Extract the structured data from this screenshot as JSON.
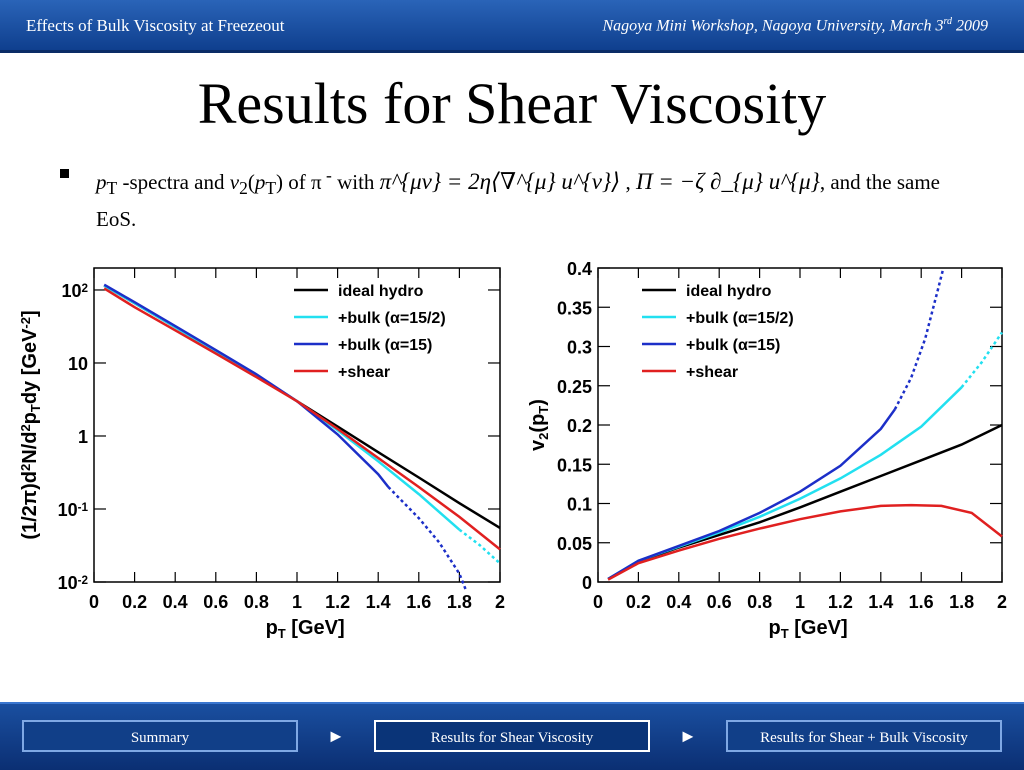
{
  "header": {
    "left_title": "Effects of Bulk Viscosity at Freezeout",
    "right_prefix": "Nagoya Mini Workshop, Nagoya University, March 3",
    "right_sup": "rd",
    "right_suffix": " 2009"
  },
  "slide": {
    "title": "Results for Shear Viscosity",
    "bullet": {
      "pt_letter": "p",
      "pt_sub": "T",
      "part1": " -spectra and ",
      "v_letter": "v",
      "v_sub": "2",
      "v_arg_open": "(",
      "v_arg_p": "p",
      "v_arg_sub": "T",
      "v_arg_close": ")",
      "part2": " of π",
      "pion_sup": " -",
      "part3": " with ",
      "eq1": "π^{μν} = 2η⟨∇^{μ} u^{ν}⟩",
      "comma": " , ",
      "eq2": "Π = −ζ ∂_{μ} u^{μ}",
      "part4": ", and the same EoS."
    }
  },
  "chart_data": [
    {
      "type": "line",
      "xlabel": "p_T [GeV]",
      "ylabel": "(1/2π)d²N/d²p_T dy [GeV⁻²]",
      "xlim": [
        0,
        2
      ],
      "ylim": [
        0.01,
        200
      ],
      "log_y": true,
      "xticks": [
        "0",
        "0.2",
        "0.4",
        "0.6",
        "0.8",
        "1",
        "1.2",
        "1.4",
        "1.6",
        "1.8",
        "2"
      ],
      "yticks": [
        {
          "value": 100,
          "base": "10",
          "exp": "2"
        },
        {
          "value": 10,
          "base": "10",
          "exp": ""
        },
        {
          "value": 1,
          "base": "1",
          "exp": ""
        },
        {
          "value": 0.1,
          "base": "10",
          "exp": "-1"
        },
        {
          "value": 0.01,
          "base": "10",
          "exp": "-2"
        }
      ],
      "legend": {
        "placement": "top-right",
        "entries": [
          "ideal hydro",
          "+bulk (α=15/2)",
          "+bulk (α=15)",
          "+shear"
        ]
      },
      "series": [
        {
          "name": "ideal hydro",
          "color": "#000000",
          "dash_from": null,
          "points": [
            [
              0.05,
              115
            ],
            [
              0.2,
              66
            ],
            [
              0.4,
              31
            ],
            [
              0.6,
              14.5
            ],
            [
              0.8,
              6.8
            ],
            [
              1.0,
              3.0
            ],
            [
              1.2,
              1.35
            ],
            [
              1.4,
              0.6
            ],
            [
              1.6,
              0.27
            ],
            [
              1.8,
              0.12
            ],
            [
              2.0,
              0.055
            ]
          ]
        },
        {
          "name": "+bulk (α=15/2)",
          "color": "#22e0f0",
          "dash_from": 1.8,
          "points": [
            [
              0.05,
              115
            ],
            [
              0.2,
              66
            ],
            [
              0.4,
              31
            ],
            [
              0.6,
              14.5
            ],
            [
              0.8,
              6.8
            ],
            [
              1.0,
              3.0
            ],
            [
              1.2,
              1.2
            ],
            [
              1.4,
              0.45
            ],
            [
              1.6,
              0.16
            ],
            [
              1.8,
              0.052
            ],
            [
              1.9,
              0.032
            ],
            [
              2.0,
              0.018
            ]
          ]
        },
        {
          "name": "+bulk (α=15)",
          "color": "#1c2fc8",
          "dash_from": 1.45,
          "points": [
            [
              0.05,
              118
            ],
            [
              0.2,
              68
            ],
            [
              0.4,
              32
            ],
            [
              0.6,
              15
            ],
            [
              0.8,
              7.0
            ],
            [
              1.0,
              3.0
            ],
            [
              1.2,
              1.05
            ],
            [
              1.4,
              0.3
            ],
            [
              1.45,
              0.2
            ],
            [
              1.6,
              0.075
            ],
            [
              1.7,
              0.035
            ],
            [
              1.8,
              0.013
            ],
            [
              1.83,
              0.008
            ]
          ]
        },
        {
          "name": "+shear",
          "color": "#e02020",
          "dash_from": null,
          "points": [
            [
              0.05,
              105
            ],
            [
              0.2,
              58
            ],
            [
              0.4,
              28
            ],
            [
              0.6,
              13.5
            ],
            [
              0.8,
              6.4
            ],
            [
              1.0,
              3.0
            ],
            [
              1.2,
              1.25
            ],
            [
              1.4,
              0.5
            ],
            [
              1.6,
              0.2
            ],
            [
              1.8,
              0.078
            ],
            [
              2.0,
              0.028
            ]
          ]
        }
      ]
    },
    {
      "type": "line",
      "xlabel": "p_T [GeV]",
      "ylabel": "v_2(p_T)",
      "xlim": [
        0,
        2
      ],
      "ylim": [
        0,
        0.4
      ],
      "log_y": false,
      "xticks": [
        "0",
        "0.2",
        "0.4",
        "0.6",
        "0.8",
        "1",
        "1.2",
        "1.4",
        "1.6",
        "1.8",
        "2"
      ],
      "yticks": [
        {
          "value": 0,
          "base": "0",
          "exp": ""
        },
        {
          "value": 0.05,
          "base": "0.05",
          "exp": ""
        },
        {
          "value": 0.1,
          "base": "0.1",
          "exp": ""
        },
        {
          "value": 0.15,
          "base": "0.15",
          "exp": ""
        },
        {
          "value": 0.2,
          "base": "0.2",
          "exp": ""
        },
        {
          "value": 0.25,
          "base": "0.25",
          "exp": ""
        },
        {
          "value": 0.3,
          "base": "0.3",
          "exp": ""
        },
        {
          "value": 0.35,
          "base": "0.35",
          "exp": ""
        },
        {
          "value": 0.4,
          "base": "0.4",
          "exp": ""
        }
      ],
      "legend": {
        "placement": "top-left",
        "entries": [
          "ideal hydro",
          "+bulk (α=15/2)",
          "+bulk (α=15)",
          "+shear"
        ]
      },
      "series": [
        {
          "name": "ideal hydro",
          "color": "#000000",
          "dash_from": null,
          "points": [
            [
              0.05,
              0.004
            ],
            [
              0.2,
              0.026
            ],
            [
              0.4,
              0.044
            ],
            [
              0.6,
              0.06
            ],
            [
              0.8,
              0.076
            ],
            [
              1.0,
              0.095
            ],
            [
              1.2,
              0.115
            ],
            [
              1.4,
              0.135
            ],
            [
              1.6,
              0.155
            ],
            [
              1.8,
              0.175
            ],
            [
              2.0,
              0.2
            ]
          ]
        },
        {
          "name": "+bulk (α=15/2)",
          "color": "#22e0f0",
          "dash_from": 1.8,
          "points": [
            [
              0.05,
              0.004
            ],
            [
              0.2,
              0.027
            ],
            [
              0.4,
              0.045
            ],
            [
              0.6,
              0.063
            ],
            [
              0.8,
              0.083
            ],
            [
              1.0,
              0.106
            ],
            [
              1.2,
              0.132
            ],
            [
              1.4,
              0.162
            ],
            [
              1.6,
              0.198
            ],
            [
              1.8,
              0.248
            ],
            [
              1.9,
              0.28
            ],
            [
              2.0,
              0.318
            ]
          ]
        },
        {
          "name": "+bulk (α=15)",
          "color": "#1c2fc8",
          "dash_from": 1.47,
          "points": [
            [
              0.05,
              0.004
            ],
            [
              0.2,
              0.027
            ],
            [
              0.4,
              0.046
            ],
            [
              0.6,
              0.065
            ],
            [
              0.8,
              0.088
            ],
            [
              1.0,
              0.115
            ],
            [
              1.2,
              0.148
            ],
            [
              1.4,
              0.195
            ],
            [
              1.47,
              0.22
            ],
            [
              1.55,
              0.26
            ],
            [
              1.62,
              0.31
            ],
            [
              1.68,
              0.37
            ],
            [
              1.71,
              0.4
            ]
          ]
        },
        {
          "name": "+shear",
          "color": "#e02020",
          "dash_from": null,
          "points": [
            [
              0.05,
              0.003
            ],
            [
              0.2,
              0.024
            ],
            [
              0.4,
              0.04
            ],
            [
              0.6,
              0.055
            ],
            [
              0.8,
              0.068
            ],
            [
              1.0,
              0.08
            ],
            [
              1.2,
              0.09
            ],
            [
              1.4,
              0.097
            ],
            [
              1.55,
              0.098
            ],
            [
              1.7,
              0.097
            ],
            [
              1.85,
              0.088
            ],
            [
              2.0,
              0.058
            ]
          ]
        }
      ]
    }
  ],
  "footer": {
    "buttons": [
      "Summary",
      "Results for Shear Viscosity",
      "Results for Shear + Bulk Viscosity"
    ],
    "arrow_glyph": "►"
  }
}
